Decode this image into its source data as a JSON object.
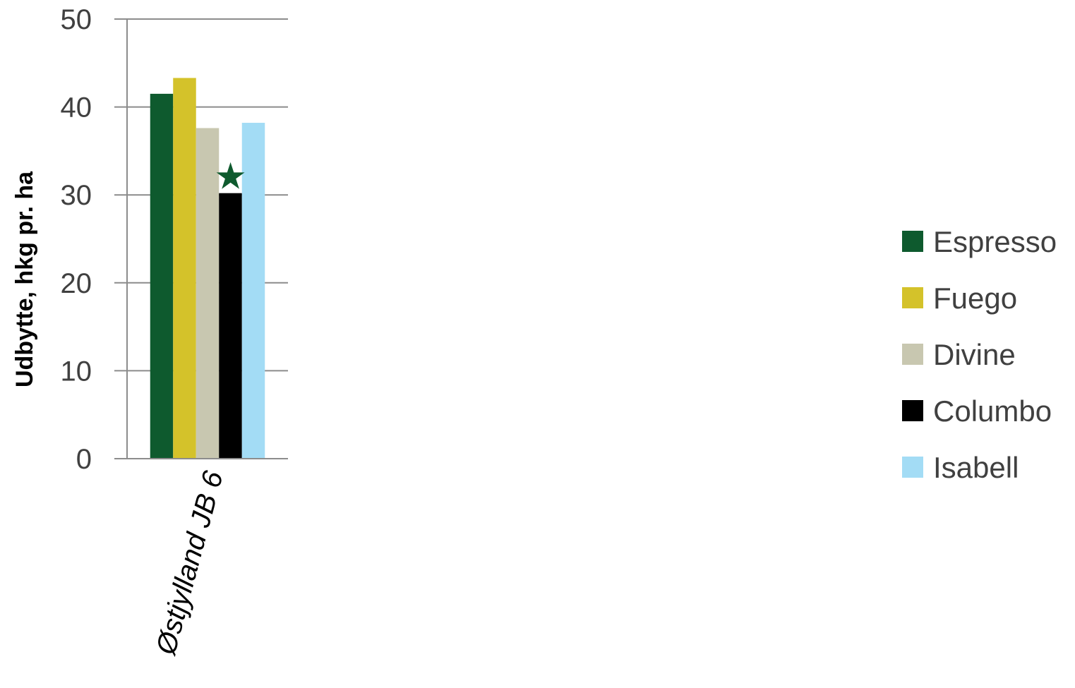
{
  "chart_data": {
    "type": "bar",
    "categories": [
      "Østjylland JB 6"
    ],
    "series": [
      {
        "name": "Espresso",
        "color": "#0e5a2e",
        "values": [
          41.5
        ]
      },
      {
        "name": "Fuego",
        "color": "#d4c22a",
        "values": [
          43.3
        ]
      },
      {
        "name": "Divine",
        "color": "#c8c7b0",
        "values": [
          37.6
        ]
      },
      {
        "name": "Columbo",
        "color": "#000000",
        "values": [
          30.2
        ]
      },
      {
        "name": "Isabell",
        "color": "#a3dcf5",
        "values": [
          38.2
        ]
      }
    ],
    "annotations": [
      {
        "series": "Columbo",
        "symbol": "★",
        "color": "#0e5a2e"
      }
    ],
    "ylabel": "Udbytte, hkg pr. ha",
    "xlabel": "",
    "ylim": [
      0,
      50
    ],
    "yticks": [
      "0",
      "10",
      "20",
      "30",
      "40",
      "50"
    ],
    "grid": true,
    "legend_position": "right"
  }
}
